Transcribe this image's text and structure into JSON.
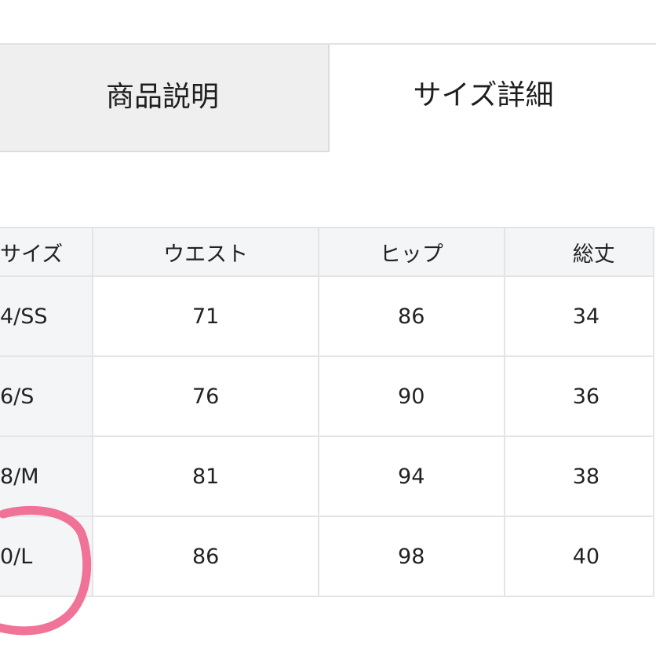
{
  "tabs": [
    {
      "label": "商品説明",
      "active": false
    },
    {
      "label": "サイズ詳細",
      "active": true
    }
  ],
  "table": {
    "headers": [
      "サイズ",
      "ウエスト",
      "ヒップ",
      "総丈"
    ],
    "rows": [
      [
        "4/SS",
        "71",
        "86",
        "34"
      ],
      [
        "6/S",
        "76",
        "90",
        "36"
      ],
      [
        "8/M",
        "81",
        "94",
        "38"
      ],
      [
        "0/L",
        "86",
        "98",
        "40"
      ]
    ]
  },
  "colors": {
    "annotation": "#f0648c",
    "header_bg": "#f3f5f7",
    "inactive_tab_bg": "#efefef"
  }
}
